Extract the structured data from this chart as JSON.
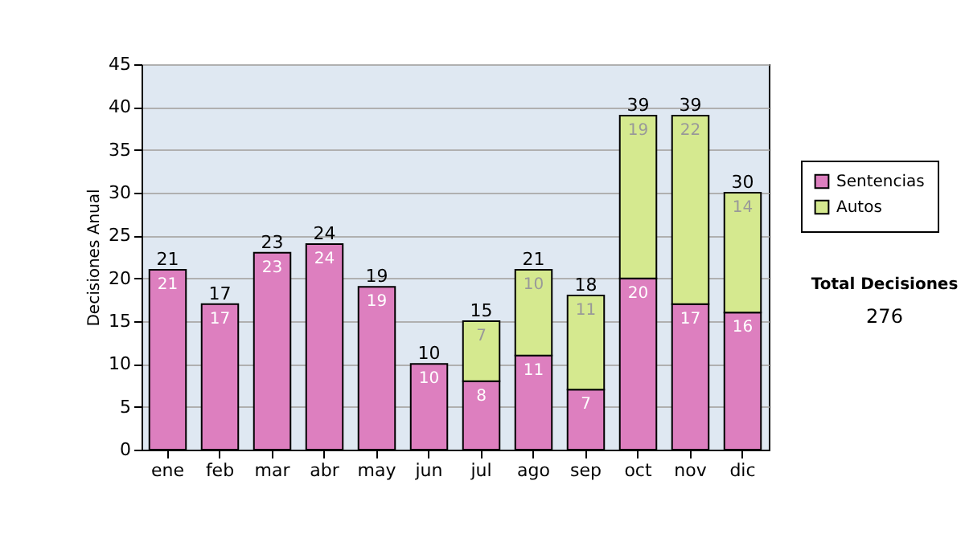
{
  "chart_data": {
    "type": "bar",
    "stacked": true,
    "ylabel": "Decisiones Anual",
    "categories": [
      "ene",
      "feb",
      "mar",
      "abr",
      "may",
      "jun",
      "jul",
      "ago",
      "sep",
      "oct",
      "nov",
      "dic"
    ],
    "series": [
      {
        "name": "Sentencias",
        "color": "#dd7fbf",
        "values": [
          21,
          17,
          23,
          24,
          19,
          10,
          8,
          11,
          7,
          20,
          17,
          16
        ],
        "value_labels": [
          "21",
          "17",
          "23",
          "24",
          "19",
          "10",
          "8",
          "11",
          "7",
          "20",
          "17",
          "16"
        ]
      },
      {
        "name": "Autos",
        "color": "#d5e98f",
        "values": [
          null,
          null,
          null,
          null,
          null,
          null,
          7,
          10,
          11,
          19,
          22,
          14
        ],
        "value_labels": [
          null,
          null,
          null,
          null,
          null,
          null,
          "7",
          "10",
          "11",
          "19",
          "22",
          "14"
        ]
      }
    ],
    "totals": [
      "21",
      "17",
      "23",
      "24",
      "19",
      "10",
      "15",
      "21",
      "18",
      "39",
      "39",
      "30"
    ],
    "ylim": [
      0,
      45
    ],
    "yticks": [
      0,
      5,
      10,
      15,
      20,
      25,
      30,
      35,
      40,
      45
    ],
    "grid": "y",
    "legend": "right",
    "annotations": [
      "Total Decisiones",
      "276"
    ]
  }
}
